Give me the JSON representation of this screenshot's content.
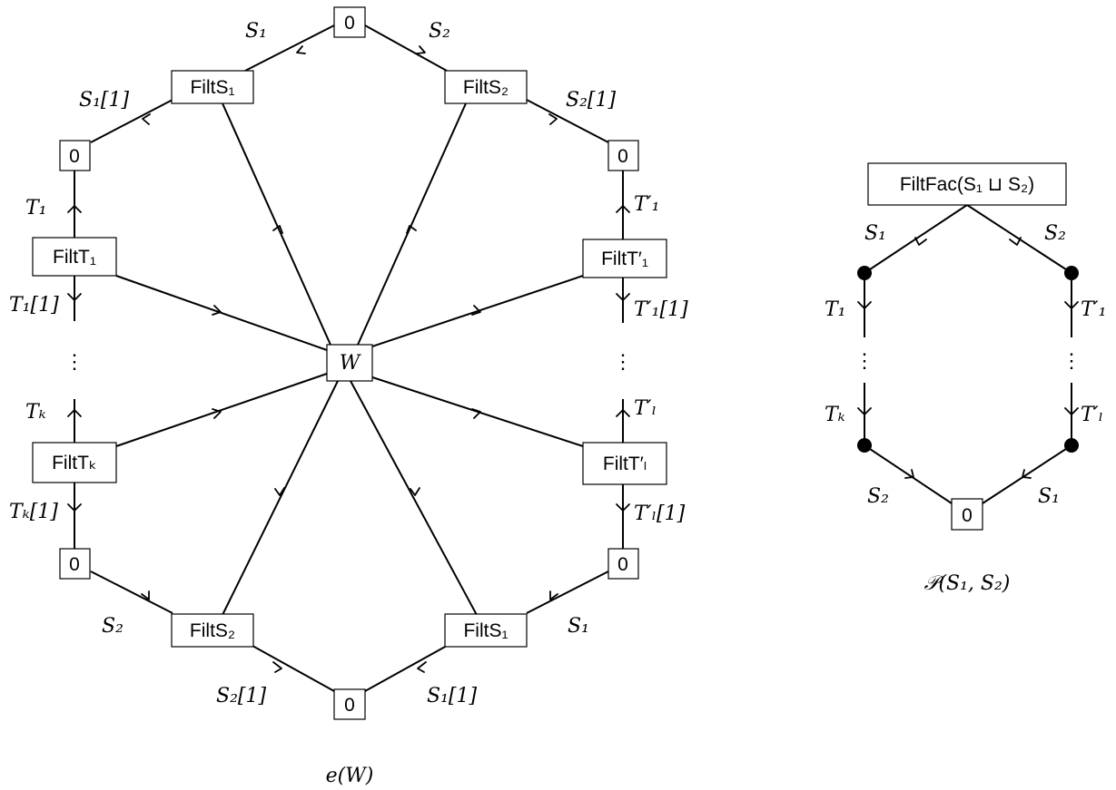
{
  "left": {
    "caption": "e(W)",
    "center_label": "W",
    "vdots": "⋮",
    "nodes": [
      {
        "id": "top0",
        "label": "0"
      },
      {
        "id": "filtS1_top",
        "label": "FiltS₁"
      },
      {
        "id": "filtS2_top",
        "label": "FiltS₂"
      },
      {
        "id": "zero_ul",
        "label": "0"
      },
      {
        "id": "zero_ur",
        "label": "0"
      },
      {
        "id": "filtT1",
        "label": "FiltT₁"
      },
      {
        "id": "filtT1p",
        "label": "FiltT′₁"
      },
      {
        "id": "filtTk",
        "label": "FiltTₖ"
      },
      {
        "id": "filtTlp",
        "label": "FiltT′ₗ"
      },
      {
        "id": "zero_ll",
        "label": "0"
      },
      {
        "id": "zero_lr",
        "label": "0"
      },
      {
        "id": "filtS2_bot",
        "label": "FiltS₂"
      },
      {
        "id": "filtS1_bot",
        "label": "FiltS₁"
      },
      {
        "id": "bot0",
        "label": "0"
      }
    ],
    "edge_labels": [
      {
        "id": "l_S1_top",
        "text": "S₁"
      },
      {
        "id": "l_S2_top",
        "text": "S₂"
      },
      {
        "id": "l_S1_1_top",
        "text": "S₁[1]"
      },
      {
        "id": "l_S2_1_top",
        "text": "S₂[1]"
      },
      {
        "id": "l_T1",
        "text": "T₁"
      },
      {
        "id": "l_T1p",
        "text": "T′₁"
      },
      {
        "id": "l_T1_1",
        "text": "T₁[1]"
      },
      {
        "id": "l_T1p_1",
        "text": "T′₁[1]"
      },
      {
        "id": "l_Tk",
        "text": "Tₖ"
      },
      {
        "id": "l_Tlp",
        "text": "T′ₗ"
      },
      {
        "id": "l_Tk_1",
        "text": "Tₖ[1]"
      },
      {
        "id": "l_Tlp_1",
        "text": "T′ₗ[1]"
      },
      {
        "id": "l_S2_bot",
        "text": "S₂"
      },
      {
        "id": "l_S1_bot",
        "text": "S₁"
      },
      {
        "id": "l_S2_1_bot",
        "text": "S₂[1]"
      },
      {
        "id": "l_S1_1_bot",
        "text": "S₁[1]"
      }
    ]
  },
  "right": {
    "caption": "𝒫(S₁, S₂)",
    "top_label": "FiltFac(S₁ ⊔ S₂)",
    "bottom_label": "0",
    "vdots": "⋮",
    "edge_labels": [
      {
        "id": "r_S1_top",
        "text": "S₁"
      },
      {
        "id": "r_S2_top",
        "text": "S₂"
      },
      {
        "id": "r_T1",
        "text": "T₁"
      },
      {
        "id": "r_T1p",
        "text": "T′₁"
      },
      {
        "id": "r_Tk",
        "text": "Tₖ"
      },
      {
        "id": "r_Tlp",
        "text": "T′ₗ"
      },
      {
        "id": "r_S2_bot",
        "text": "S₂"
      },
      {
        "id": "r_S1_bot",
        "text": "S₁"
      }
    ]
  }
}
